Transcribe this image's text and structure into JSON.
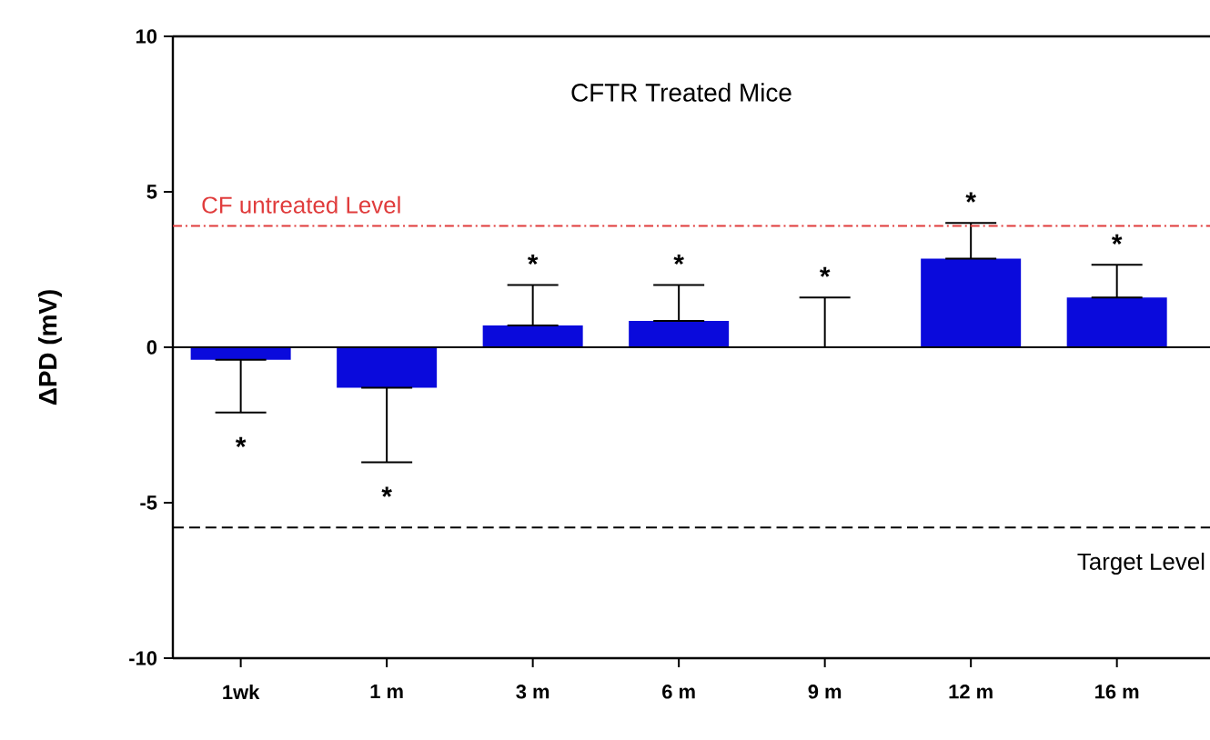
{
  "chart_data": {
    "type": "bar",
    "title": "CFTR Treated Mice",
    "ylabel": "ΔPD (mV)",
    "categories": [
      "1wk",
      "1 m",
      "3 m",
      "6 m",
      "9 m",
      "12 m",
      "16 m"
    ],
    "values": [
      -0.4,
      -1.3,
      0.7,
      0.85,
      0,
      2.85,
      1.6
    ],
    "errors": [
      [
        -2.1,
        -0.4
      ],
      [
        -3.7,
        -1.3
      ],
      [
        0.7,
        2.0
      ],
      [
        0.85,
        2.0
      ],
      [
        0,
        1.6
      ],
      [
        2.85,
        4.0
      ],
      [
        1.6,
        2.65
      ]
    ],
    "color": "#0a0adc",
    "ylim": [
      -10,
      10
    ],
    "yticks": [
      -10,
      -5,
      0,
      5,
      10
    ],
    "grid": false,
    "ref_lines": [
      {
        "axis": "y",
        "value": 0,
        "color": "#000000",
        "line_style": "solid"
      },
      {
        "axis": "y",
        "value": 3.9,
        "label": "CF untreated Level",
        "color": "#e03c3c",
        "line_style": "dashdot"
      },
      {
        "axis": "y",
        "value": -5.8,
        "label": "Target Level",
        "color": "#000000",
        "line_style": "dashed"
      }
    ],
    "annotations": [
      {
        "text": "*",
        "x": "1wk",
        "y": -2.1
      },
      {
        "text": "*",
        "x": "1 m",
        "y": -3.7
      },
      {
        "text": "*",
        "x": "3 m",
        "y": 2.0
      },
      {
        "text": "*",
        "x": "6 m",
        "y": 2.0
      },
      {
        "text": "*",
        "x": "9 m",
        "y": 1.6
      },
      {
        "text": "*",
        "x": "12 m",
        "y": 4.0
      },
      {
        "text": "*",
        "x": "16 m",
        "y": 2.65
      }
    ]
  }
}
